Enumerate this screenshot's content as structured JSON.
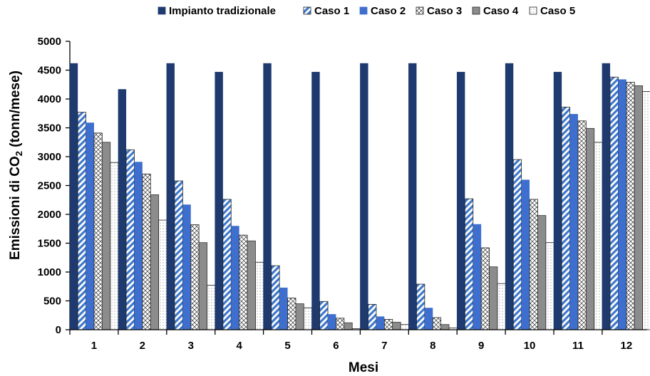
{
  "chart_data": {
    "type": "bar",
    "title": "",
    "xlabel": "Mesi",
    "ylabel_parts": [
      "Emissioni di CO",
      "2",
      " (tonn/mese)"
    ],
    "ylim": [
      0,
      5000
    ],
    "yticks": [
      0,
      500,
      1000,
      1500,
      2000,
      2500,
      3000,
      3500,
      4000,
      4500,
      5000
    ],
    "categories": [
      "1",
      "2",
      "3",
      "4",
      "5",
      "6",
      "7",
      "8",
      "9",
      "10",
      "11",
      "12"
    ],
    "grid": false,
    "legend_position": "top",
    "series": [
      {
        "name": "Impianto tradizionale",
        "color": "#1f3a6e",
        "pattern": "solid",
        "values": [
          4620,
          4170,
          4620,
          4470,
          4620,
          4470,
          4620,
          4620,
          4470,
          4620,
          4470,
          4620
        ]
      },
      {
        "name": "Caso 1",
        "color": "#3f78c9",
        "pattern": "diagonal-stripes",
        "values": [
          3770,
          3120,
          2580,
          2260,
          1110,
          490,
          440,
          790,
          2270,
          2950,
          3860,
          4380
        ]
      },
      {
        "name": "Caso 2",
        "color": "#3f6fce",
        "pattern": "solid",
        "values": [
          3590,
          2910,
          2170,
          1800,
          730,
          270,
          230,
          380,
          1830,
          2600,
          3740,
          4340
        ]
      },
      {
        "name": "Caso 3",
        "color": "#ffffff",
        "pattern": "crosshatch",
        "values": [
          3410,
          2700,
          1820,
          1640,
          550,
          200,
          180,
          210,
          1420,
          2260,
          3620,
          4290
        ]
      },
      {
        "name": "Caso 4",
        "color": "#8c8c8c",
        "pattern": "solid",
        "values": [
          3250,
          2340,
          1510,
          1540,
          450,
          120,
          130,
          90,
          1090,
          1980,
          3490,
          4230
        ]
      },
      {
        "name": "Caso 5",
        "color": "#ffffff",
        "pattern": "dots",
        "values": [
          2900,
          1900,
          770,
          1170,
          380,
          20,
          90,
          30,
          800,
          1510,
          3250,
          4130
        ]
      }
    ]
  }
}
